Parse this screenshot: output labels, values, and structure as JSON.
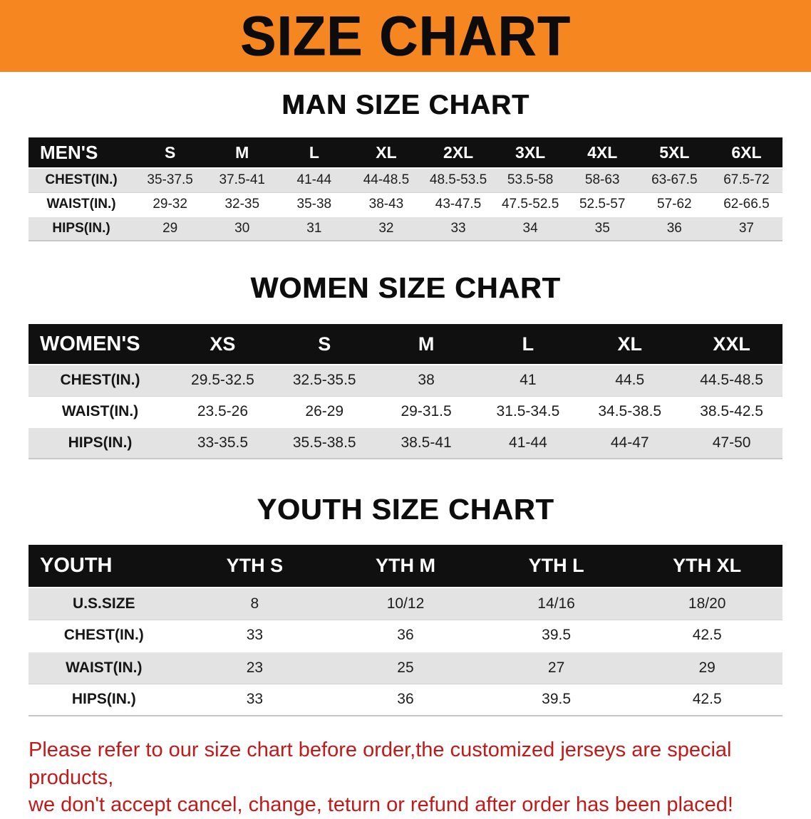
{
  "banner": {
    "title": "SIZE CHART",
    "bg_color": "#f6861f",
    "text_color": "#0c0c0c"
  },
  "sections": [
    {
      "heading": "MAN SIZE CHART",
      "table": {
        "name": "mens",
        "header": [
          "MEN'S",
          "S",
          "M",
          "L",
          "XL",
          "2XL",
          "3XL",
          "4XL",
          "5XL",
          "6XL"
        ],
        "rows": [
          {
            "label": "CHEST(IN.)",
            "values": [
              "35-37.5",
              "37.5-41",
              "41-44",
              "44-48.5",
              "48.5-53.5",
              "53.5-58",
              "58-63",
              "63-67.5",
              "67.5-72"
            ]
          },
          {
            "label": "WAIST(IN.)",
            "values": [
              "29-32",
              "32-35",
              "35-38",
              "38-43",
              "43-47.5",
              "47.5-52.5",
              "52.5-57",
              "57-62",
              "62-66.5"
            ]
          },
          {
            "label": "HIPS(IN.)",
            "values": [
              "29",
              "30",
              "31",
              "32",
              "33",
              "34",
              "35",
              "36",
              "37"
            ]
          }
        ]
      }
    },
    {
      "heading": "WOMEN SIZE CHART",
      "table": {
        "name": "womens",
        "header": [
          "WOMEN'S",
          "XS",
          "S",
          "M",
          "L",
          "XL",
          "XXL"
        ],
        "rows": [
          {
            "label": "CHEST(IN.)",
            "values": [
              "29.5-32.5",
              "32.5-35.5",
              "38",
              "41",
              "44.5",
              "44.5-48.5"
            ]
          },
          {
            "label": "WAIST(IN.)",
            "values": [
              "23.5-26",
              "26-29",
              "29-31.5",
              "31.5-34.5",
              "34.5-38.5",
              "38.5-42.5"
            ]
          },
          {
            "label": "HIPS(IN.)",
            "values": [
              "33-35.5",
              "35.5-38.5",
              "38.5-41",
              "41-44",
              "44-47",
              "47-50"
            ]
          }
        ]
      }
    },
    {
      "heading": "YOUTH SIZE CHART",
      "table": {
        "name": "youth",
        "header": [
          "YOUTH",
          "YTH S",
          "YTH M",
          "YTH L",
          "YTH XL"
        ],
        "rows": [
          {
            "label": "U.S.SIZE",
            "values": [
              "8",
              "10/12",
              "14/16",
              "18/20"
            ]
          },
          {
            "label": "CHEST(IN.)",
            "values": [
              "33",
              "36",
              "39.5",
              "42.5"
            ]
          },
          {
            "label": "WAIST(IN.)",
            "values": [
              "23",
              "25",
              "27",
              "29"
            ]
          },
          {
            "label": "HIPS(IN.)",
            "values": [
              "33",
              "36",
              "39.5",
              "42.5"
            ]
          }
        ]
      }
    }
  ],
  "disclaimer": {
    "text_color": "#c31919",
    "lines": [
      "Please refer to our size chart before order,the customized jerseys are special products,",
      "we don't accept cancel, change, teturn or refund after order has been placed!"
    ]
  },
  "colors": {
    "banner_orange": "#f6861f",
    "table_header_black": "#101010",
    "row_shaded_gray": "#e3e3e3",
    "row_plain_white": "#ffffff",
    "disclaimer_red": "#c31919"
  }
}
